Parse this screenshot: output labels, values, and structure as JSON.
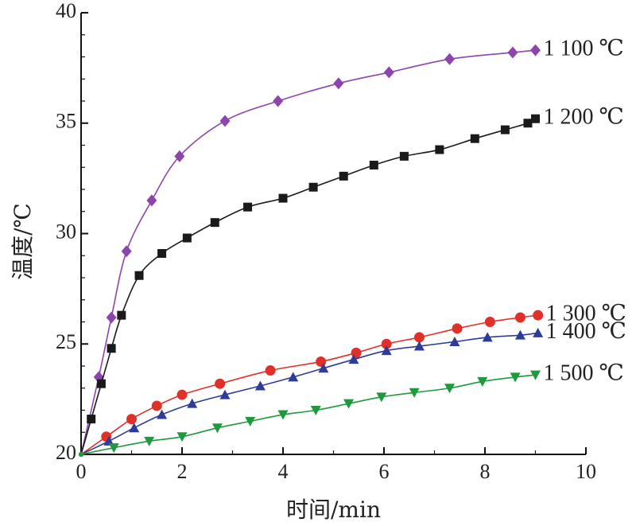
{
  "chart_data": {
    "type": "line",
    "xlabel": "时间/min",
    "ylabel": "温度/℃",
    "xlim": [
      0,
      10
    ],
    "ylim": [
      20,
      40
    ],
    "xticks": [
      0,
      2,
      4,
      6,
      8,
      10
    ],
    "yticks": [
      20,
      25,
      30,
      35,
      40
    ],
    "xtick_labels": [
      "0",
      "2",
      "4",
      "6",
      "8",
      "10"
    ],
    "ytick_labels": [
      "20",
      "25",
      "30",
      "35",
      "40"
    ],
    "grid": false,
    "legend": "none",
    "series": [
      {
        "name": "1 100 ℃",
        "color": "#8e44ad",
        "marker": "diamond",
        "x": [
          0,
          0.35,
          0.6,
          0.9,
          1.4,
          1.95,
          2.85,
          3.9,
          5.1,
          6.1,
          7.3,
          8.55,
          9.0
        ],
        "y": [
          20,
          23.5,
          26.2,
          29.2,
          31.5,
          33.5,
          35.1,
          36.0,
          36.8,
          37.3,
          37.9,
          38.2,
          38.3
        ]
      },
      {
        "name": "1 200 ℃",
        "color": "#1a1a1a",
        "marker": "square",
        "x": [
          0,
          0.2,
          0.4,
          0.6,
          0.8,
          1.15,
          1.6,
          2.1,
          2.65,
          3.3,
          4.0,
          4.6,
          5.2,
          5.8,
          6.4,
          7.1,
          7.8,
          8.4,
          8.85,
          9.0
        ],
        "y": [
          20,
          21.6,
          23.2,
          24.8,
          26.3,
          28.1,
          29.1,
          29.8,
          30.5,
          31.2,
          31.6,
          32.1,
          32.6,
          33.1,
          33.5,
          33.8,
          34.3,
          34.7,
          35.0,
          35.2
        ]
      },
      {
        "name": "1 300 ℃",
        "color": "#e0302a",
        "marker": "circle",
        "x": [
          0,
          0.5,
          1.0,
          1.5,
          2.0,
          2.75,
          3.75,
          4.75,
          5.45,
          6.05,
          6.7,
          7.45,
          8.1,
          8.7,
          9.05
        ],
        "y": [
          20,
          20.8,
          21.6,
          22.2,
          22.7,
          23.2,
          23.8,
          24.2,
          24.6,
          25.0,
          25.3,
          25.7,
          26.0,
          26.2,
          26.3
        ]
      },
      {
        "name": "1 400 ℃",
        "color": "#2d3c96",
        "marker": "triangle-up",
        "x": [
          0,
          0.55,
          1.05,
          1.6,
          2.2,
          2.85,
          3.55,
          4.2,
          4.8,
          5.4,
          6.05,
          6.7,
          7.4,
          8.05,
          8.7,
          9.05
        ],
        "y": [
          20,
          20.6,
          21.2,
          21.8,
          22.3,
          22.7,
          23.1,
          23.5,
          23.9,
          24.3,
          24.7,
          24.9,
          25.1,
          25.3,
          25.4,
          25.5
        ]
      },
      {
        "name": "1 500 ℃",
        "color": "#1e9a3c",
        "marker": "triangle-down",
        "x": [
          0,
          0.65,
          1.35,
          2.0,
          2.7,
          3.35,
          4.0,
          4.65,
          5.3,
          5.95,
          6.6,
          7.3,
          7.95,
          8.6,
          9.0
        ],
        "y": [
          20,
          20.3,
          20.6,
          20.8,
          21.2,
          21.5,
          21.8,
          22.0,
          22.3,
          22.6,
          22.8,
          23.0,
          23.3,
          23.5,
          23.6
        ]
      }
    ]
  }
}
